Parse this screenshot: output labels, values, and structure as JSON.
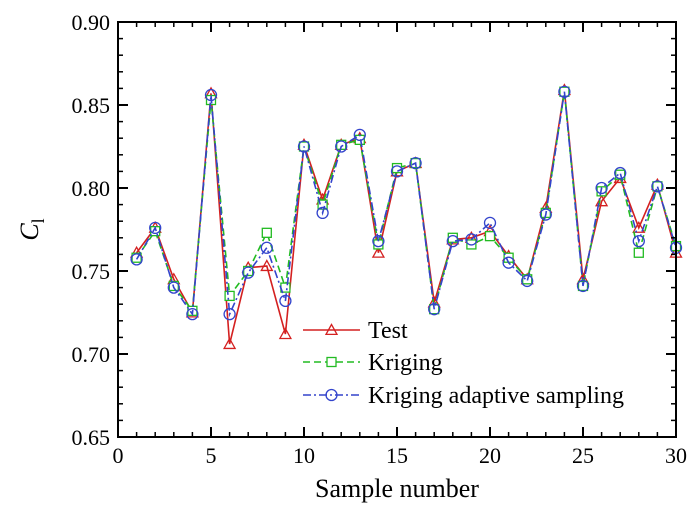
{
  "chart_data": {
    "type": "line",
    "title": "",
    "xlabel": "Sample number",
    "ylabel": "C",
    "ylabel_subscript": "l",
    "xlim": [
      0,
      30
    ],
    "ylim": [
      0.65,
      0.9
    ],
    "x_ticks": [
      0,
      5,
      10,
      15,
      20,
      25,
      30
    ],
    "y_ticks": [
      0.65,
      0.7,
      0.75,
      0.8,
      0.85,
      0.9
    ],
    "y_tick_labels": [
      "0.65",
      "0.70",
      "0.75",
      "0.80",
      "0.85",
      "0.90"
    ],
    "grid": false,
    "legend_position": "lower-center",
    "x": [
      1,
      2,
      3,
      4,
      5,
      6,
      7,
      8,
      9,
      10,
      11,
      12,
      13,
      14,
      15,
      16,
      17,
      18,
      19,
      20,
      21,
      22,
      23,
      24,
      25,
      26,
      27,
      28,
      29,
      30
    ],
    "series": [
      {
        "name": "Test",
        "color": "#d42020",
        "dash": "solid",
        "marker": "triangle",
        "values": [
          0.761,
          0.776,
          0.745,
          0.725,
          0.857,
          0.706,
          0.752,
          0.753,
          0.712,
          0.826,
          0.793,
          0.826,
          0.83,
          0.761,
          0.81,
          0.815,
          0.731,
          0.769,
          0.77,
          0.774,
          0.759,
          0.745,
          0.788,
          0.859,
          0.745,
          0.792,
          0.806,
          0.776,
          0.802,
          0.761
        ]
      },
      {
        "name": "Kriging",
        "color": "#22bb22",
        "dash": "dashed",
        "marker": "square",
        "values": [
          0.758,
          0.774,
          0.741,
          0.726,
          0.853,
          0.735,
          0.75,
          0.773,
          0.74,
          0.825,
          0.79,
          0.826,
          0.829,
          0.766,
          0.812,
          0.815,
          0.727,
          0.77,
          0.766,
          0.771,
          0.758,
          0.745,
          0.785,
          0.858,
          0.741,
          0.798,
          0.808,
          0.761,
          0.801,
          0.765
        ]
      },
      {
        "name": "Kriging adaptive sampling",
        "color": "#3344cc",
        "dash": "dashdot",
        "marker": "circle",
        "values": [
          0.757,
          0.776,
          0.74,
          0.724,
          0.856,
          0.724,
          0.749,
          0.764,
          0.732,
          0.825,
          0.785,
          0.825,
          0.832,
          0.768,
          0.81,
          0.815,
          0.727,
          0.768,
          0.769,
          0.779,
          0.755,
          0.744,
          0.784,
          0.858,
          0.741,
          0.8,
          0.809,
          0.768,
          0.801,
          0.764
        ]
      }
    ]
  }
}
